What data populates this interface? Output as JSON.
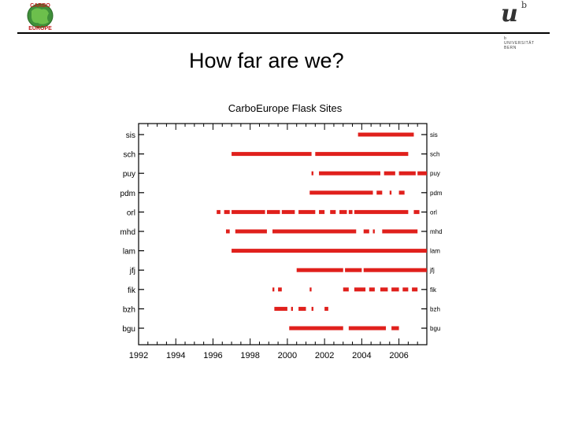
{
  "header": {
    "left_logo_text_top": "CARBO",
    "left_logo_text_bottom": "EUROPE",
    "right_logo_u": "u",
    "right_logo_b": "b",
    "right_logo_lines": [
      "b",
      "UNIVERSITÄT",
      "BERN"
    ]
  },
  "slide": {
    "title": "How far are we?"
  },
  "colors": {
    "bar": "#e0201c",
    "axis": "#000000"
  },
  "chart_data": {
    "type": "timeline",
    "title": "CarboEurope Flask Sites",
    "xlim": [
      1992,
      2007.5
    ],
    "xticks": [
      1992,
      1994,
      1996,
      1998,
      2000,
      2002,
      2004,
      2006
    ],
    "sites": [
      {
        "name": "sis",
        "segments": [
          [
            2003.8,
            2006.8
          ]
        ]
      },
      {
        "name": "sch",
        "segments": [
          [
            1997.0,
            2001.3
          ],
          [
            2001.5,
            2006.5
          ]
        ]
      },
      {
        "name": "puy",
        "segments": [
          [
            2001.3,
            2001.4
          ],
          [
            2001.7,
            2005.0
          ],
          [
            2005.2,
            2005.8
          ],
          [
            2006.0,
            2006.9
          ],
          [
            2007.0,
            2007.6
          ]
        ]
      },
      {
        "name": "pdm",
        "segments": [
          [
            2001.2,
            2004.6
          ],
          [
            2004.8,
            2005.1
          ],
          [
            2005.5,
            2005.6
          ],
          [
            2006.0,
            2006.3
          ]
        ]
      },
      {
        "name": "orl",
        "segments": [
          [
            1996.2,
            1996.4
          ],
          [
            1996.6,
            1996.9
          ],
          [
            1997.0,
            1998.8
          ],
          [
            1998.9,
            1999.6
          ],
          [
            1999.7,
            2000.4
          ],
          [
            2000.6,
            2001.5
          ],
          [
            2001.7,
            2002.0
          ],
          [
            2002.3,
            2002.6
          ],
          [
            2002.8,
            2003.2
          ],
          [
            2003.3,
            2003.5
          ],
          [
            2003.6,
            2006.5
          ],
          [
            2006.8,
            2007.1
          ]
        ]
      },
      {
        "name": "mhd",
        "segments": [
          [
            1996.7,
            1996.9
          ],
          [
            1997.2,
            1998.9
          ],
          [
            1999.2,
            2003.7
          ],
          [
            2004.1,
            2004.4
          ],
          [
            2004.6,
            2004.7
          ],
          [
            2005.1,
            2007.0
          ]
        ]
      },
      {
        "name": "lam",
        "segments": [
          [
            1997.0,
            2007.6
          ]
        ]
      },
      {
        "name": "jfj",
        "segments": [
          [
            2000.5,
            2003.0
          ],
          [
            2003.1,
            2004.0
          ],
          [
            2004.1,
            2007.5
          ]
        ]
      },
      {
        "name": "fik",
        "segments": [
          [
            1999.2,
            1999.3
          ],
          [
            1999.5,
            1999.7
          ],
          [
            2001.2,
            2001.3
          ],
          [
            2003.0,
            2003.3
          ],
          [
            2003.6,
            2004.2
          ],
          [
            2004.4,
            2004.7
          ],
          [
            2005.0,
            2005.4
          ],
          [
            2005.6,
            2006.0
          ],
          [
            2006.2,
            2006.5
          ],
          [
            2006.7,
            2007.0
          ]
        ]
      },
      {
        "name": "bzh",
        "segments": [
          [
            1999.3,
            2000.0
          ],
          [
            2000.2,
            2000.3
          ],
          [
            2000.6,
            2001.0
          ],
          [
            2001.3,
            2001.4
          ],
          [
            2002.0,
            2002.2
          ]
        ]
      },
      {
        "name": "bgu",
        "segments": [
          [
            2000.1,
            2003.0
          ],
          [
            2003.3,
            2005.3
          ],
          [
            2005.6,
            2006.0
          ]
        ]
      }
    ]
  }
}
